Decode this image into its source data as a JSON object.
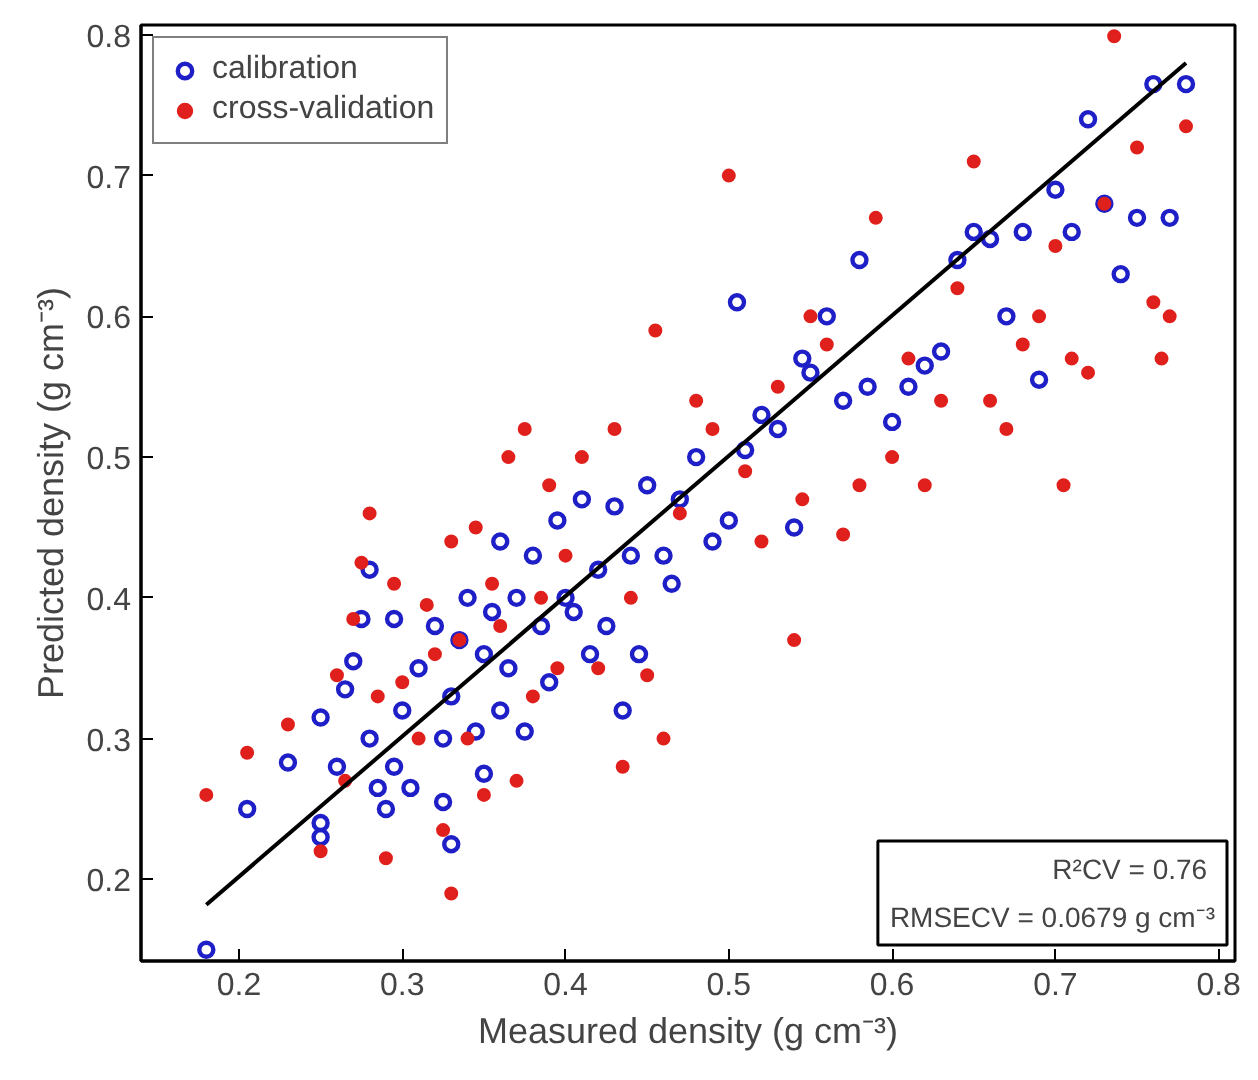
{
  "chart_data": {
    "type": "scatter",
    "xlabel": "Measured density (g cm⁻³)",
    "ylabel": "Predicted density (g cm⁻³)",
    "xlim": [
      0.14,
      0.81
    ],
    "ylim": [
      0.142,
      0.807
    ],
    "xticks": [
      0.2,
      0.3,
      0.4,
      0.5,
      0.6,
      0.7,
      0.8
    ],
    "yticks": [
      0.2,
      0.3,
      0.4,
      0.5,
      0.6,
      0.7,
      0.8
    ],
    "grid": false,
    "legend": "top left",
    "annotations": [
      "R²CV  = 0.76",
      "RMSECV = 0.0679 g cm⁻³"
    ],
    "series": [
      {
        "name": "calibration",
        "color": "#1f1fc8",
        "marker": "circle",
        "x": [
          0.18,
          0.205,
          0.23,
          0.25,
          0.25,
          0.25,
          0.26,
          0.265,
          0.27,
          0.275,
          0.28,
          0.28,
          0.285,
          0.29,
          0.295,
          0.295,
          0.3,
          0.305,
          0.31,
          0.32,
          0.325,
          0.325,
          0.33,
          0.33,
          0.335,
          0.34,
          0.345,
          0.35,
          0.35,
          0.355,
          0.36,
          0.36,
          0.365,
          0.37,
          0.375,
          0.38,
          0.385,
          0.39,
          0.395,
          0.4,
          0.405,
          0.41,
          0.415,
          0.42,
          0.425,
          0.43,
          0.435,
          0.44,
          0.445,
          0.45,
          0.46,
          0.465,
          0.47,
          0.48,
          0.49,
          0.5,
          0.505,
          0.51,
          0.52,
          0.53,
          0.54,
          0.545,
          0.55,
          0.56,
          0.57,
          0.58,
          0.585,
          0.6,
          0.61,
          0.62,
          0.63,
          0.64,
          0.65,
          0.66,
          0.67,
          0.68,
          0.69,
          0.7,
          0.71,
          0.72,
          0.73,
          0.74,
          0.75,
          0.76,
          0.77,
          0.78
        ],
        "values": [
          0.15,
          0.25,
          0.283,
          0.23,
          0.24,
          0.315,
          0.28,
          0.335,
          0.355,
          0.385,
          0.42,
          0.3,
          0.265,
          0.25,
          0.385,
          0.28,
          0.32,
          0.265,
          0.35,
          0.38,
          0.3,
          0.255,
          0.225,
          0.33,
          0.37,
          0.4,
          0.305,
          0.36,
          0.275,
          0.39,
          0.32,
          0.44,
          0.35,
          0.4,
          0.305,
          0.43,
          0.38,
          0.34,
          0.455,
          0.4,
          0.39,
          0.47,
          0.36,
          0.42,
          0.38,
          0.465,
          0.32,
          0.43,
          0.36,
          0.48,
          0.43,
          0.41,
          0.47,
          0.5,
          0.44,
          0.455,
          0.61,
          0.505,
          0.53,
          0.52,
          0.45,
          0.57,
          0.56,
          0.6,
          0.54,
          0.64,
          0.55,
          0.525,
          0.55,
          0.565,
          0.575,
          0.64,
          0.66,
          0.655,
          0.6,
          0.66,
          0.555,
          0.69,
          0.66,
          0.74,
          0.68,
          0.63,
          0.67,
          0.765,
          0.67,
          0.765
        ]
      },
      {
        "name": "cross-validation",
        "color": "#e0201c",
        "marker": "circle",
        "x": [
          0.18,
          0.205,
          0.23,
          0.25,
          0.26,
          0.265,
          0.27,
          0.275,
          0.28,
          0.285,
          0.29,
          0.295,
          0.3,
          0.31,
          0.315,
          0.32,
          0.325,
          0.33,
          0.33,
          0.335,
          0.34,
          0.345,
          0.35,
          0.355,
          0.36,
          0.365,
          0.37,
          0.375,
          0.38,
          0.385,
          0.39,
          0.395,
          0.4,
          0.41,
          0.42,
          0.43,
          0.435,
          0.44,
          0.45,
          0.455,
          0.46,
          0.47,
          0.48,
          0.49,
          0.5,
          0.51,
          0.52,
          0.53,
          0.54,
          0.545,
          0.55,
          0.56,
          0.57,
          0.58,
          0.59,
          0.6,
          0.61,
          0.62,
          0.63,
          0.64,
          0.65,
          0.66,
          0.67,
          0.68,
          0.69,
          0.7,
          0.705,
          0.71,
          0.72,
          0.73,
          0.736,
          0.75,
          0.76,
          0.765,
          0.77,
          0.78
        ],
        "values": [
          0.26,
          0.29,
          0.31,
          0.22,
          0.345,
          0.27,
          0.385,
          0.425,
          0.46,
          0.33,
          0.215,
          0.41,
          0.34,
          0.3,
          0.395,
          0.36,
          0.235,
          0.19,
          0.44,
          0.37,
          0.3,
          0.45,
          0.26,
          0.41,
          0.38,
          0.5,
          0.27,
          0.52,
          0.33,
          0.4,
          0.48,
          0.35,
          0.43,
          0.5,
          0.35,
          0.52,
          0.28,
          0.4,
          0.345,
          0.59,
          0.3,
          0.46,
          0.54,
          0.52,
          0.7,
          0.49,
          0.44,
          0.55,
          0.37,
          0.47,
          0.6,
          0.58,
          0.445,
          0.48,
          0.67,
          0.5,
          0.57,
          0.48,
          0.54,
          0.62,
          0.71,
          0.54,
          0.52,
          0.58,
          0.6,
          0.65,
          0.48,
          0.57,
          0.56,
          0.68,
          0.799,
          0.72,
          0.61,
          0.57,
          0.6,
          0.735
        ]
      },
      {
        "type": "line",
        "color": "#000000",
        "x": [
          0.18,
          0.78
        ],
        "values": [
          0.182,
          0.78
        ]
      }
    ]
  }
}
